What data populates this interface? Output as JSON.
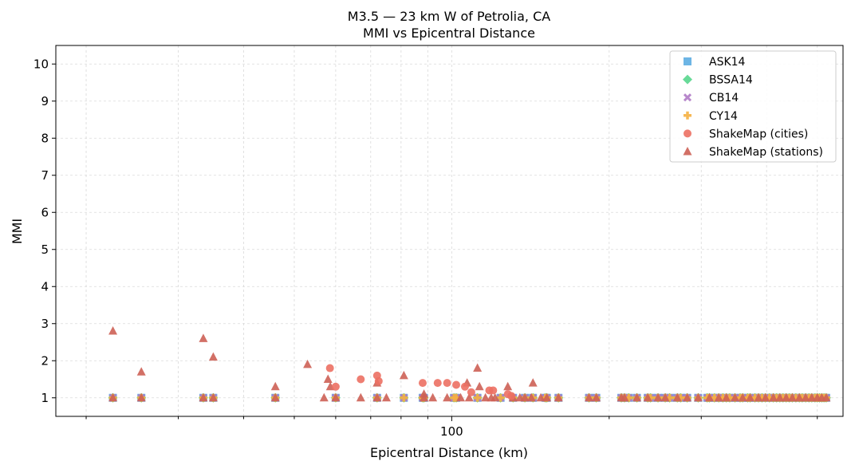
{
  "chart_data": {
    "type": "scatter",
    "title": "M3.5 — 23 km W of Petrolia, CA",
    "subtitle": "MMI vs Epicentral Distance",
    "xlabel": "Epicentral Distance (km)",
    "ylabel": "MMI",
    "xscale": "log",
    "xlim": [
      17.5,
      560
    ],
    "ylim": [
      0.5,
      10.5
    ],
    "xticks": [
      {
        "value": 100,
        "label": "100"
      }
    ],
    "yticks": [
      1,
      2,
      3,
      4,
      5,
      6,
      7,
      8,
      9,
      10
    ],
    "grid": true,
    "legend_position": "top-right",
    "gmpe_x": [
      22.5,
      25.5,
      33.5,
      35,
      46,
      60,
      72,
      81,
      88,
      88.5,
      101,
      102,
      112,
      124,
      131,
      138,
      143,
      151,
      152,
      160,
      183,
      189,
      211,
      214,
      218,
      226,
      237,
      240,
      248,
      256,
      261,
      270,
      274,
      282,
      296,
      308,
      311,
      318,
      324,
      330,
      335,
      340,
      348,
      356,
      360,
      368,
      372,
      380,
      386,
      392,
      398,
      405,
      412,
      418,
      424,
      430,
      436,
      442,
      448,
      455,
      462,
      468,
      475,
      482,
      488,
      495,
      500,
      505,
      510,
      515,
      520
    ],
    "series": [
      {
        "name": "ASK14",
        "marker": "square",
        "color": "#5dade2"
      },
      {
        "name": "BSSA14",
        "marker": "diamond",
        "color": "#58d68d"
      },
      {
        "name": "CB14",
        "marker": "x",
        "color": "#af7ac5"
      },
      {
        "name": "CY14",
        "marker": "plus",
        "color": "#f5b041"
      },
      {
        "name": "ShakeMap (cities)",
        "marker": "circle",
        "color": "#ec7063",
        "points": [
          [
            58.5,
            1.8
          ],
          [
            60,
            1.3
          ],
          [
            67,
            1.5
          ],
          [
            72,
            1.6
          ],
          [
            72.5,
            1.45
          ],
          [
            88,
            1.4
          ],
          [
            94,
            1.4
          ],
          [
            98,
            1.4
          ],
          [
            102,
            1.35
          ],
          [
            106,
            1.3
          ],
          [
            109,
            1.15
          ],
          [
            118,
            1.2
          ],
          [
            120,
            1.2
          ],
          [
            128,
            1.1
          ],
          [
            130,
            1.05
          ]
        ]
      },
      {
        "name": "ShakeMap (stations)",
        "marker": "triangle",
        "color": "#cd6155",
        "points": [
          [
            22.5,
            2.8
          ],
          [
            25.5,
            1.7
          ],
          [
            33.5,
            2.6
          ],
          [
            35,
            2.1
          ],
          [
            46,
            1.3
          ],
          [
            53,
            1.9
          ],
          [
            58,
            1.5
          ],
          [
            58.6,
            1.3
          ],
          [
            72,
            1.4
          ],
          [
            81,
            1.6
          ],
          [
            88.5,
            1.1
          ],
          [
            107,
            1.4
          ],
          [
            112,
            1.8
          ],
          [
            113,
            1.3
          ],
          [
            128,
            1.3
          ],
          [
            143,
            1.4
          ],
          [
            22.5,
            1.0
          ],
          [
            25.5,
            1.0
          ],
          [
            33.5,
            1.0
          ],
          [
            35,
            1.0
          ],
          [
            46,
            1.0
          ],
          [
            57,
            1.0
          ],
          [
            60,
            1.0
          ],
          [
            67,
            1.0
          ],
          [
            72,
            1.0
          ],
          [
            75,
            1.0
          ],
          [
            88.5,
            1.0
          ],
          [
            92,
            1.0
          ],
          [
            98,
            1.0
          ],
          [
            104,
            1.0
          ],
          [
            108,
            1.0
          ],
          [
            116,
            1.0
          ],
          [
            119,
            1.0
          ],
          [
            121,
            1.0
          ],
          [
            131,
            1.0
          ],
          [
            135,
            1.0
          ],
          [
            138,
            1.0
          ],
          [
            142,
            1.0
          ],
          [
            148,
            1.0
          ],
          [
            152,
            1.0
          ],
          [
            160,
            1.0
          ],
          [
            183,
            1.0
          ],
          [
            189,
            1.0
          ],
          [
            211,
            1.0
          ],
          [
            214,
            1.0
          ],
          [
            226,
            1.0
          ],
          [
            237,
            1.0
          ],
          [
            248,
            1.0
          ],
          [
            256,
            1.0
          ],
          [
            270,
            1.0
          ],
          [
            282,
            1.0
          ],
          [
            296,
            1.0
          ],
          [
            311,
            1.0
          ],
          [
            324,
            1.0
          ],
          [
            335,
            1.0
          ],
          [
            348,
            1.0
          ],
          [
            360,
            1.0
          ],
          [
            372,
            1.0
          ],
          [
            386,
            1.0
          ],
          [
            398,
            1.0
          ],
          [
            412,
            1.0
          ],
          [
            424,
            1.0
          ],
          [
            436,
            1.0
          ],
          [
            448,
            1.0
          ],
          [
            462,
            1.0
          ],
          [
            475,
            1.0
          ],
          [
            488,
            1.0
          ],
          [
            500,
            1.0
          ],
          [
            510,
            1.0
          ],
          [
            520,
            1.0
          ]
        ]
      }
    ]
  }
}
